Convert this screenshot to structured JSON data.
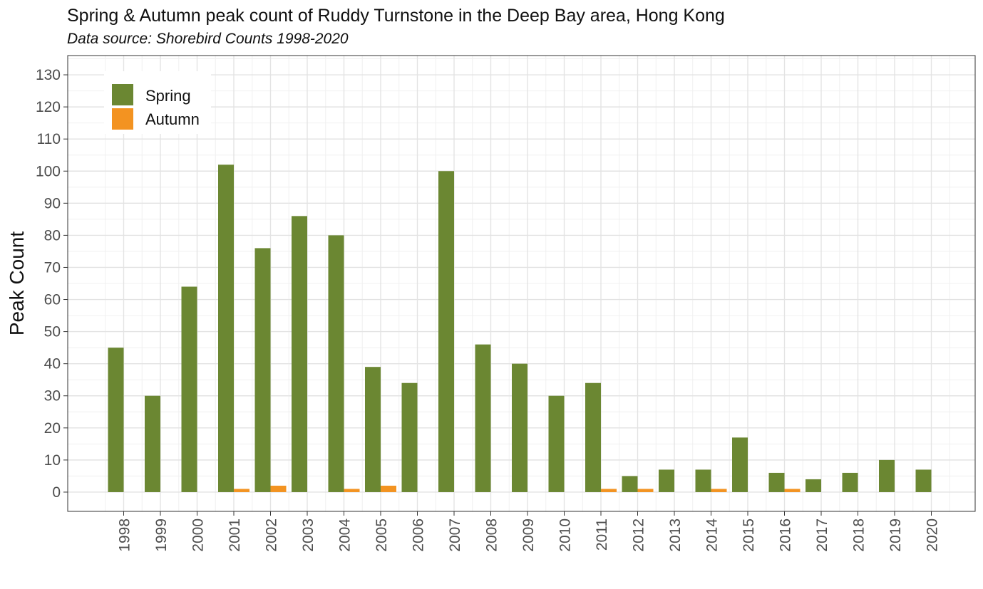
{
  "chart_data": {
    "type": "bar",
    "title": "Spring & Autumn peak count of Ruddy Turnstone in the Deep Bay area, Hong Kong",
    "subtitle": "Data source: Shorebird Counts 1998-2020",
    "xlabel": "",
    "ylabel": "Peak Count",
    "ylim": [
      -6,
      136
    ],
    "yticks": [
      0,
      10,
      20,
      30,
      40,
      50,
      60,
      70,
      80,
      90,
      100,
      110,
      120,
      130
    ],
    "grid": true,
    "legend_position": "top-left",
    "categories": [
      "1998",
      "1999",
      "2000",
      "2001",
      "2002",
      "2003",
      "2004",
      "2005",
      "2006",
      "2007",
      "2008",
      "2009",
      "2010",
      "2011",
      "2012",
      "2013",
      "2014",
      "2015",
      "2016",
      "2017",
      "2018",
      "2019",
      "2020"
    ],
    "series": [
      {
        "name": "Spring",
        "color": "#6b8732",
        "values": [
          45,
          30,
          64,
          102,
          76,
          86,
          80,
          39,
          34,
          100,
          46,
          40,
          30,
          34,
          5,
          7,
          7,
          17,
          6,
          4,
          6,
          10,
          7
        ]
      },
      {
        "name": "Autumn",
        "color": "#f39321",
        "values": [
          0,
          0,
          0,
          1,
          2,
          0,
          1,
          2,
          0,
          0,
          0,
          0,
          0,
          1,
          1,
          0,
          1,
          0,
          1,
          0,
          0,
          0,
          0
        ]
      }
    ]
  }
}
